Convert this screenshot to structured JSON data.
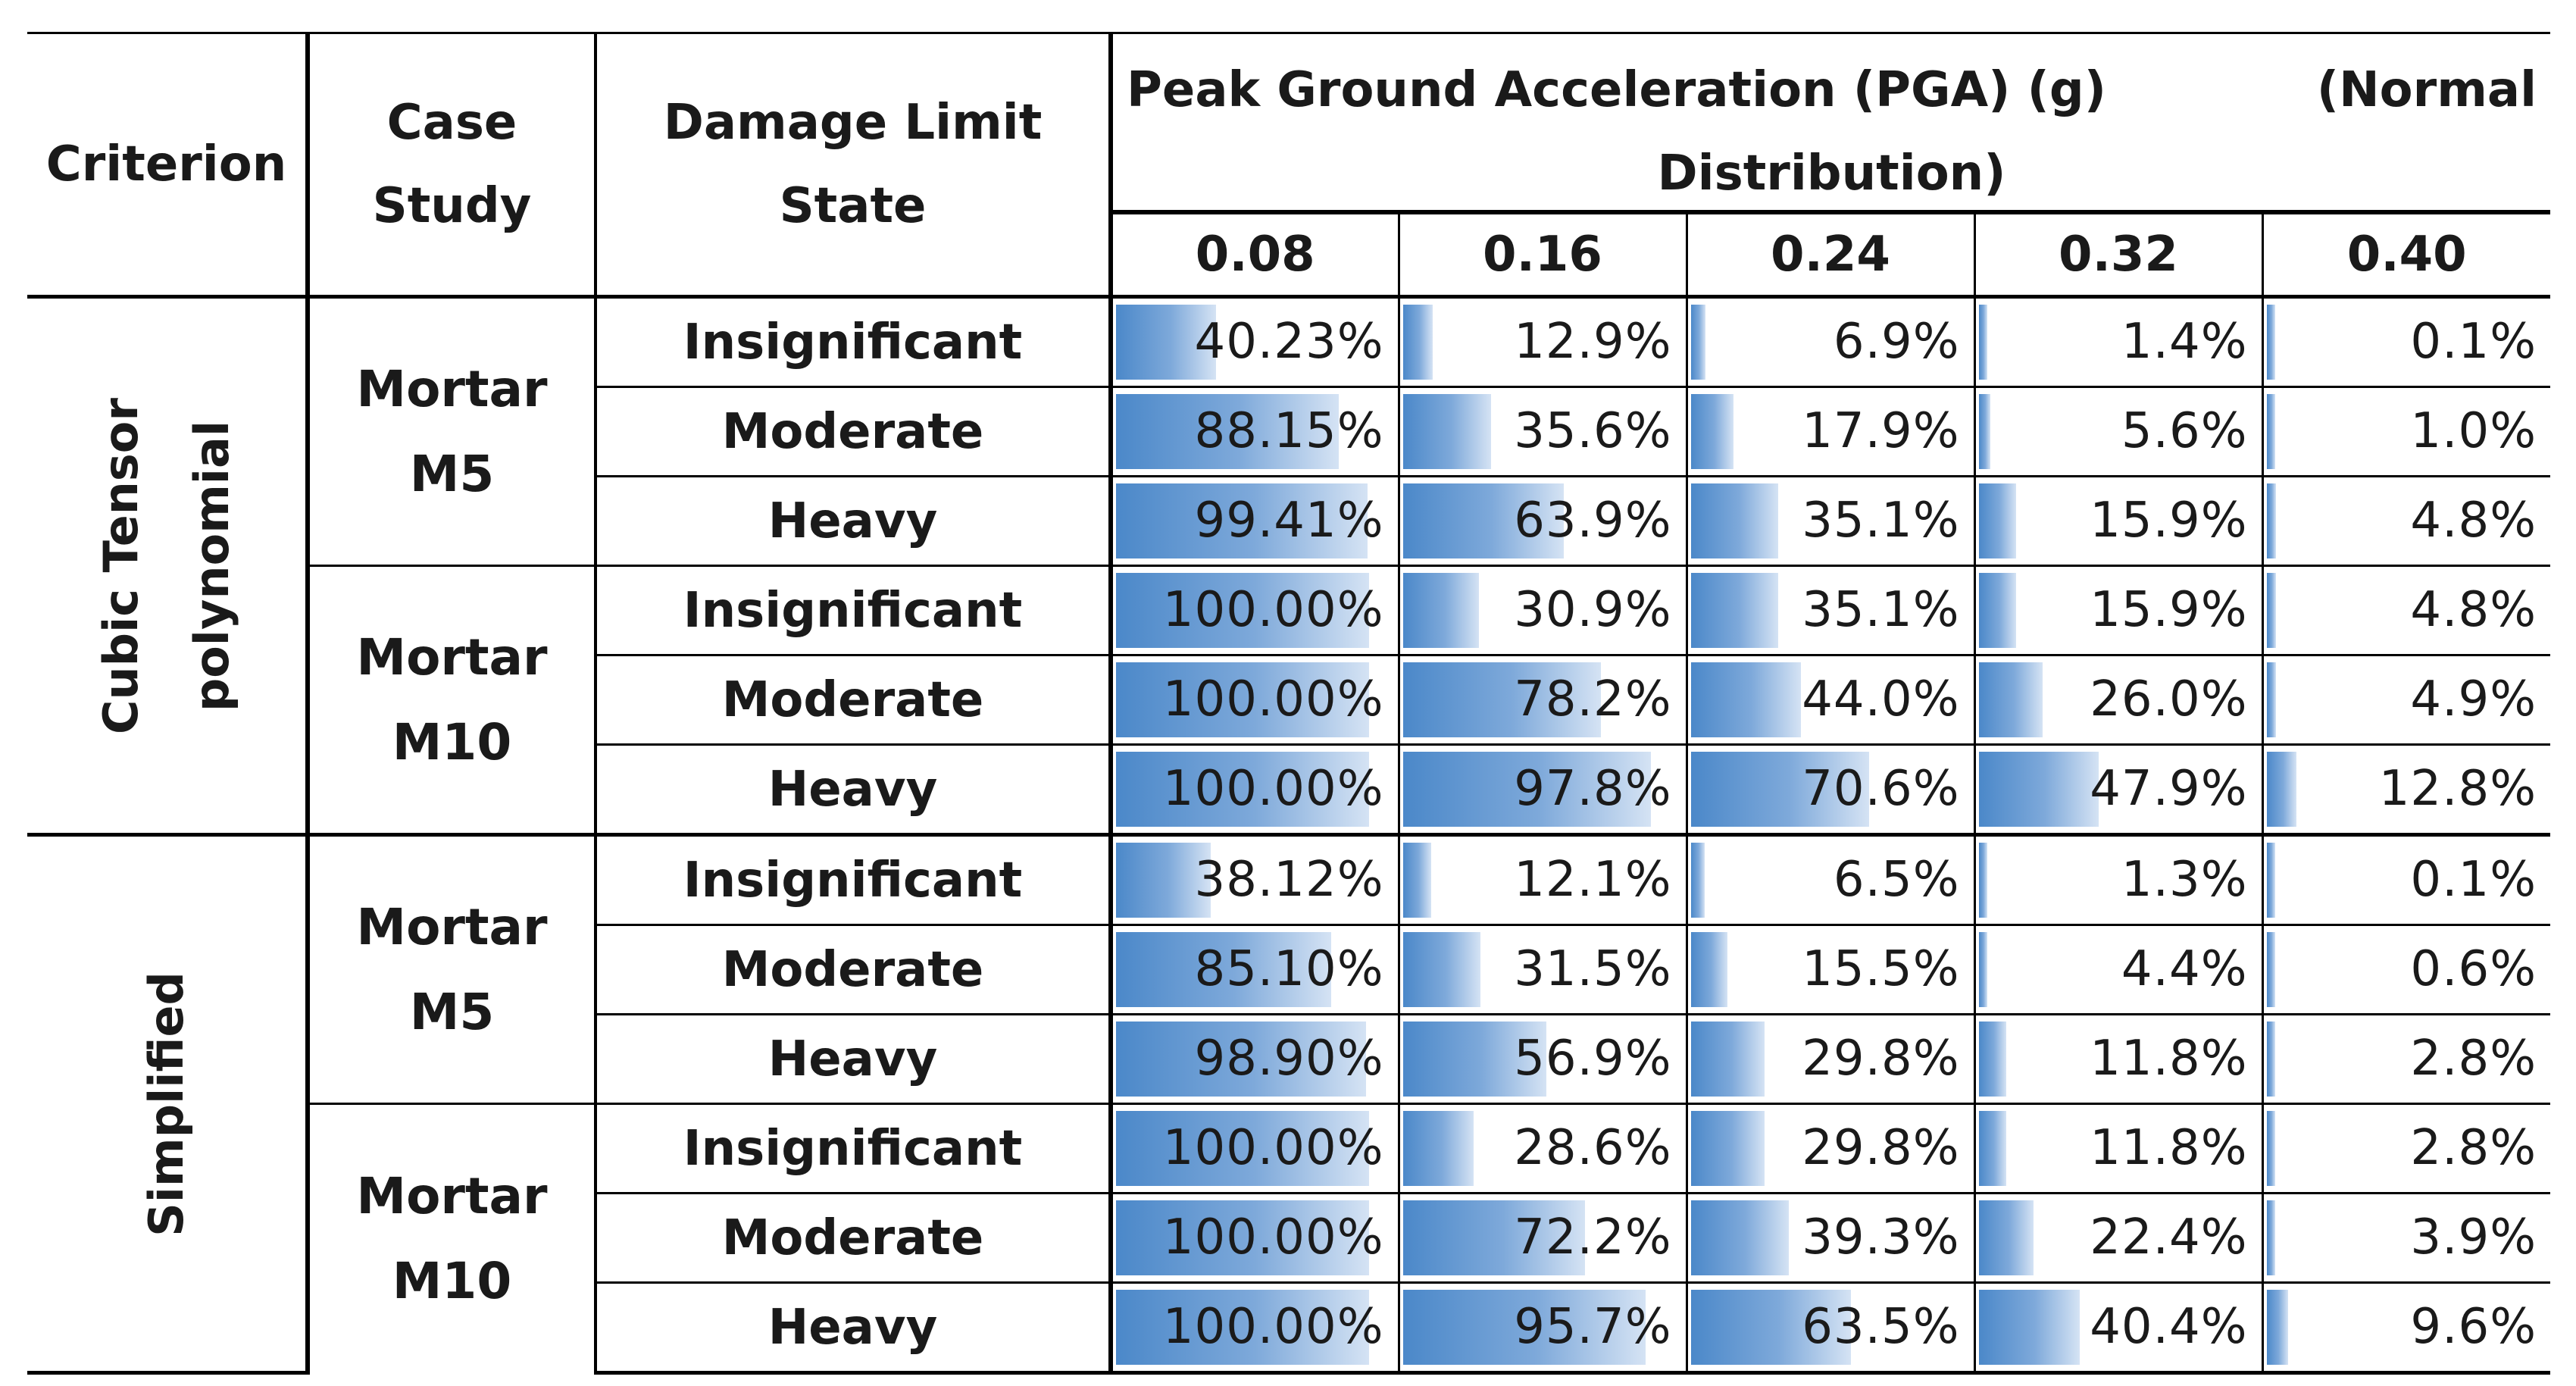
{
  "header": {
    "criterion": "Criterion",
    "case_study": "Case Study",
    "damage_limit_state": "Damage Limit State",
    "pga_title_left": "Peak Ground Acceleration (PGA) (g)",
    "pga_title_right": "(Normal",
    "pga_title_line2": "Distribution)",
    "pga_levels": [
      "0.08",
      "0.16",
      "0.24",
      "0.32",
      "0.40"
    ]
  },
  "bar_color": "#4b88c9",
  "groups": [
    {
      "criterion": "Cubic Tensor polynomial",
      "criterion_lines": [
        "Cubic Tensor",
        "polynomial"
      ],
      "cases": [
        {
          "case_lines": [
            "Mortar",
            "M5"
          ],
          "rows": [
            {
              "state": "Insignificant",
              "values": [
                "40.23%",
                "12.9%",
                "6.9%",
                "1.4%",
                "0.1%"
              ],
              "pct": [
                40.23,
                12.9,
                6.9,
                1.4,
                0.1
              ]
            },
            {
              "state": "Moderate",
              "values": [
                "88.15%",
                "35.6%",
                "17.9%",
                "5.6%",
                "1.0%"
              ],
              "pct": [
                88.15,
                35.6,
                17.9,
                5.6,
                1.0
              ]
            },
            {
              "state": "Heavy",
              "values": [
                "99.41%",
                "63.9%",
                "35.1%",
                "15.9%",
                "4.8%"
              ],
              "pct": [
                99.41,
                63.9,
                35.1,
                15.9,
                4.8
              ]
            }
          ]
        },
        {
          "case_lines": [
            "Mortar",
            "M10"
          ],
          "rows": [
            {
              "state": "Insignificant",
              "values": [
                "100.00%",
                "30.9%",
                "35.1%",
                "15.9%",
                "4.8%"
              ],
              "pct": [
                100,
                30.9,
                35.1,
                15.9,
                4.8
              ]
            },
            {
              "state": "Moderate",
              "values": [
                "100.00%",
                "78.2%",
                "44.0%",
                "26.0%",
                "4.9%"
              ],
              "pct": [
                100,
                78.2,
                44.0,
                26.0,
                4.9
              ]
            },
            {
              "state": "Heavy",
              "values": [
                "100.00%",
                "97.8%",
                "70.6%",
                "47.9%",
                "12.8%"
              ],
              "pct": [
                100,
                97.8,
                70.6,
                47.9,
                12.8
              ]
            }
          ]
        }
      ]
    },
    {
      "criterion": "Simplified",
      "criterion_lines": [
        "Simplified"
      ],
      "cases": [
        {
          "case_lines": [
            "Mortar",
            "M5"
          ],
          "rows": [
            {
              "state": "Insignificant",
              "values": [
                "38.12%",
                "12.1%",
                "6.5%",
                "1.3%",
                "0.1%"
              ],
              "pct": [
                38.12,
                12.1,
                6.5,
                1.3,
                0.1
              ]
            },
            {
              "state": "Moderate",
              "values": [
                "85.10%",
                "31.5%",
                "15.5%",
                "4.4%",
                "0.6%"
              ],
              "pct": [
                85.1,
                31.5,
                15.5,
                4.4,
                0.6
              ]
            },
            {
              "state": "Heavy",
              "values": [
                "98.90%",
                "56.9%",
                "29.8%",
                "11.8%",
                "2.8%"
              ],
              "pct": [
                98.9,
                56.9,
                29.8,
                11.8,
                2.8
              ]
            }
          ]
        },
        {
          "case_lines": [
            "Mortar",
            "M10"
          ],
          "rows": [
            {
              "state": "Insignificant",
              "values": [
                "100.00%",
                "28.6%",
                "29.8%",
                "11.8%",
                "2.8%"
              ],
              "pct": [
                100,
                28.6,
                29.8,
                11.8,
                2.8
              ]
            },
            {
              "state": "Moderate",
              "values": [
                "100.00%",
                "72.2%",
                "39.3%",
                "22.4%",
                "3.9%"
              ],
              "pct": [
                100,
                72.2,
                39.3,
                22.4,
                3.9
              ]
            },
            {
              "state": "Heavy",
              "values": [
                "100.00%",
                "95.7%",
                "63.5%",
                "40.4%",
                "9.6%"
              ],
              "pct": [
                100,
                95.7,
                63.5,
                40.4,
                9.6
              ]
            }
          ]
        }
      ]
    }
  ]
}
